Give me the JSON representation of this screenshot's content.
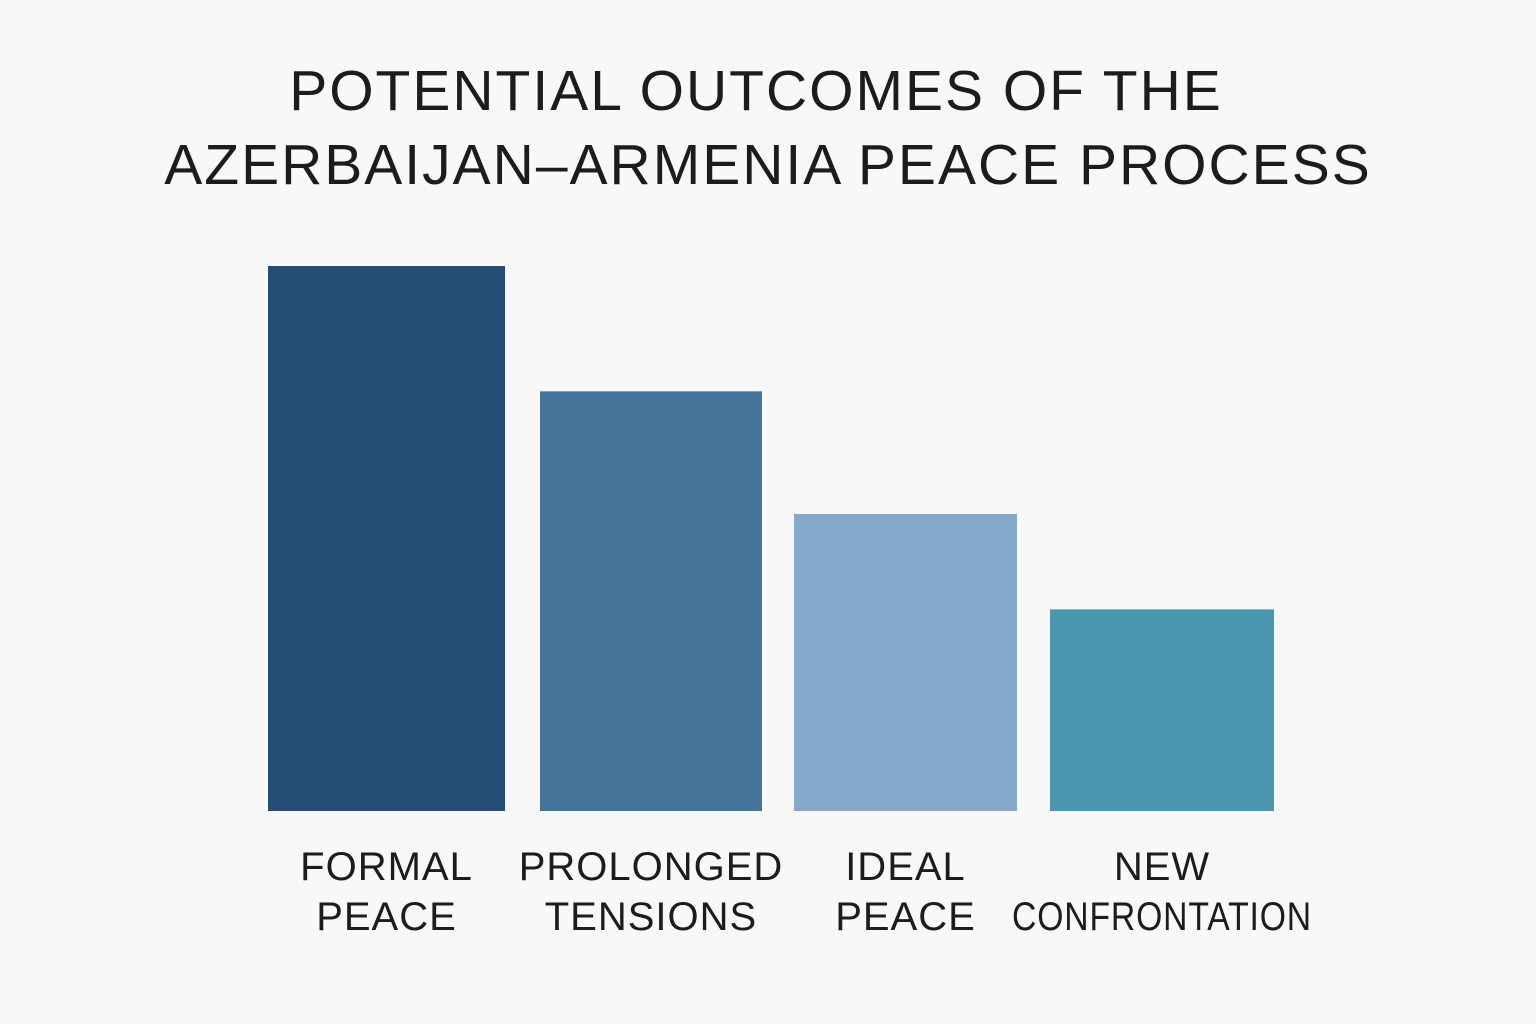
{
  "chart_data": {
    "type": "bar",
    "title_lines": [
      "POTENTIAL OUTCOMES OF THE",
      "AZERBAIJAN–ARMENIA PEACE PROCESS"
    ],
    "categories": [
      [
        "FORMAL",
        "PEACE"
      ],
      [
        "PROLONGED",
        "TENSIONS"
      ],
      [
        "IDEAL",
        "PEACE"
      ],
      [
        "NEW",
        "CONFRONTATION"
      ]
    ],
    "values": [
      100,
      77,
      54.5,
      37
    ],
    "ylim": [
      0,
      100
    ],
    "colors": [
      "#234d75",
      "#467399",
      "#84a9ca",
      "#4b96af"
    ],
    "grid": false,
    "axes_visible": false
  }
}
